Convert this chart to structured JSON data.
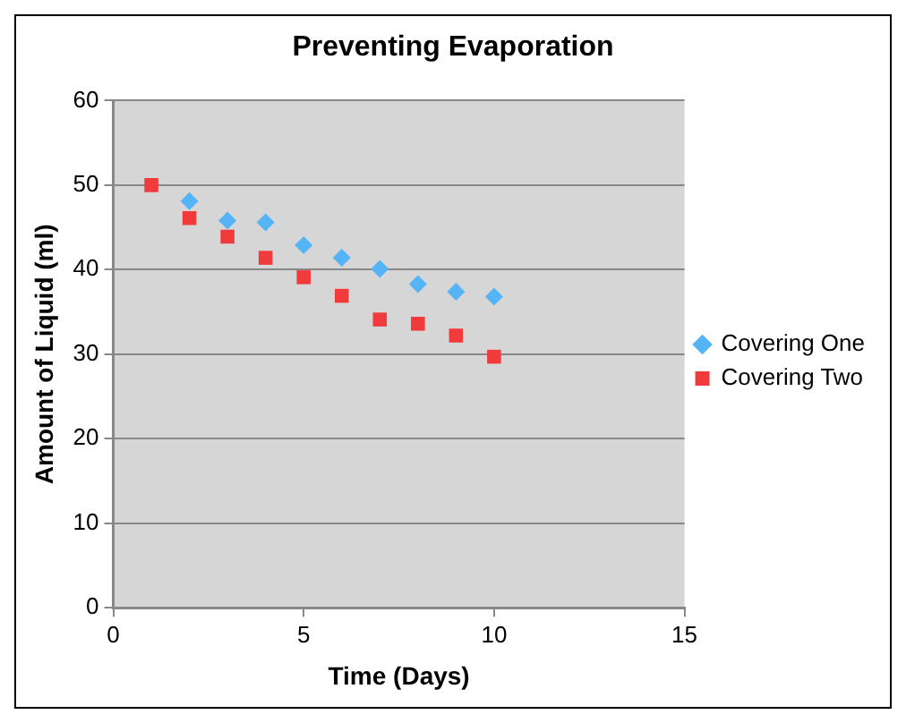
{
  "chart_data": {
    "type": "scatter",
    "title": "Preventing Evaporation",
    "xlabel": "Time (Days)",
    "ylabel": "Amount of Liquid (ml)",
    "xlim": [
      0,
      15
    ],
    "xticks": [
      0,
      5,
      10,
      15
    ],
    "ylim": [
      0,
      60
    ],
    "yticks": [
      0,
      10,
      20,
      30,
      40,
      50,
      60
    ],
    "grid": "y",
    "legend": "right",
    "series": [
      {
        "name": "Covering One",
        "color": "#55b4f5",
        "marker": "diamond",
        "x": [
          2,
          3,
          4,
          5,
          6,
          7,
          8,
          9,
          10
        ],
        "values": [
          48.1,
          45.8,
          45.6,
          42.9,
          41.4,
          40.1,
          38.3,
          37.4,
          36.8
        ]
      },
      {
        "name": "Covering Two",
        "color": "#f03a3c",
        "marker": "square",
        "x": [
          1,
          2,
          3,
          4,
          5,
          6,
          7,
          8,
          9,
          10
        ],
        "values": [
          50,
          46.1,
          43.9,
          41.4,
          39.1,
          36.9,
          34.1,
          33.6,
          32.2,
          29.7
        ]
      }
    ]
  }
}
